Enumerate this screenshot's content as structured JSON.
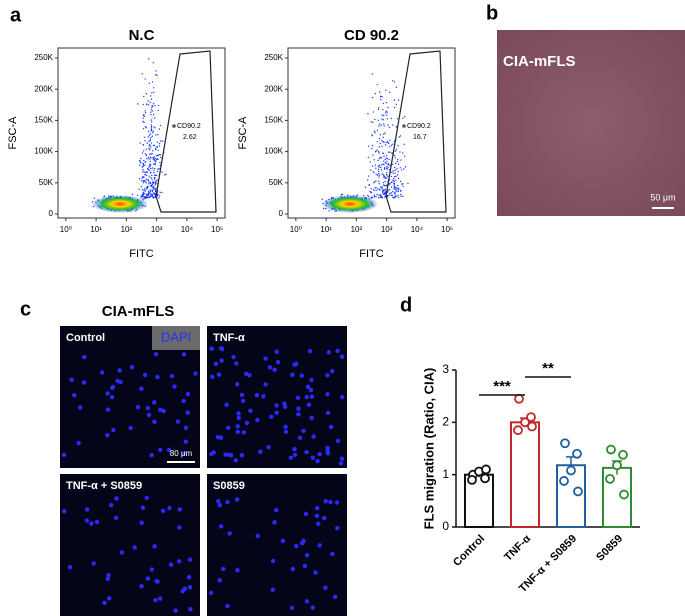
{
  "figure": {
    "panel_labels": [
      "a",
      "b",
      "c",
      "d"
    ],
    "b": {
      "title": "CIA-mFLS",
      "scale": "50 μm"
    },
    "c": {
      "title": "CIA-mFLS",
      "stain": "DAPI",
      "fields": [
        "Control",
        "TNF-α",
        "TNF-α + S0859",
        "S0859"
      ],
      "scale": "80 μm"
    }
  },
  "chart_data": [
    {
      "type": "scatter",
      "title": "N.C",
      "xlabel": "FITC",
      "ylabel": "FSC-A",
      "xscale": "log",
      "xlim": [
        0.55,
        182000
      ],
      "xticks": [
        {
          "value": 1,
          "label": "10⁰"
        },
        {
          "value": 10,
          "label": "10¹"
        },
        {
          "value": 100,
          "label": "10²"
        },
        {
          "value": 1000,
          "label": "10³"
        },
        {
          "value": 10000,
          "label": "10⁴"
        },
        {
          "value": 100000,
          "label": "10⁵"
        }
      ],
      "ylim": [
        -6400,
        266000
      ],
      "yticks": [
        0,
        {
          "value": 50000,
          "label": "50K"
        },
        {
          "value": 100000,
          "label": "100K"
        },
        {
          "value": 150000,
          "label": "150K"
        },
        {
          "value": 200000,
          "label": "200K"
        },
        {
          "value": 250000,
          "label": "250K"
        }
      ],
      "gate": {
        "name": "CD90.2",
        "value": 2.62
      },
      "color": "#1a3cff"
    },
    {
      "type": "scatter",
      "title": "CD 90.2",
      "xlabel": "FITC",
      "ylabel": "FSC-A",
      "xscale": "log",
      "xlim": [
        0.55,
        182000
      ],
      "xticks": [
        {
          "value": 1,
          "label": "10⁰"
        },
        {
          "value": 10,
          "label": "10¹"
        },
        {
          "value": 100,
          "label": "10²"
        },
        {
          "value": 1000,
          "label": "10³"
        },
        {
          "value": 10000,
          "label": "10⁴"
        },
        {
          "value": 100000,
          "label": "10⁵"
        }
      ],
      "ylim": [
        -6400,
        266000
      ],
      "yticks": [
        0,
        {
          "value": 50000,
          "label": "50K"
        },
        {
          "value": 100000,
          "label": "100K"
        },
        {
          "value": 150000,
          "label": "150K"
        },
        {
          "value": 200000,
          "label": "200K"
        },
        {
          "value": 250000,
          "label": "250K"
        }
      ],
      "gate": {
        "name": "CD90.2",
        "value": 16.7
      },
      "color": "#1a3cff"
    },
    {
      "type": "bar",
      "ylabel": "FLS migration (Ratio, CIA)",
      "categories": [
        "Control",
        "TNF-α",
        "TNF-α + S0859",
        "S0859"
      ],
      "values": [
        1.0,
        2.0,
        1.18,
        1.13
      ],
      "errors": [
        0.05,
        0.08,
        0.16,
        0.13
      ],
      "colors": [
        "#111111",
        "#c0282d",
        "#1f5fa0",
        "#2e8b2e"
      ],
      "points": [
        [
          1.0,
          0.93,
          1.06,
          0.9,
          1.1
        ],
        [
          2.45,
          2.1,
          2.0,
          1.85,
          1.92
        ],
        [
          1.6,
          1.4,
          1.08,
          0.88,
          0.68
        ],
        [
          1.48,
          1.38,
          1.18,
          0.92,
          0.62
        ]
      ],
      "ylim": [
        0,
        3
      ],
      "yticks": [
        0,
        1,
        2,
        3
      ],
      "annotations": [
        "***",
        "**"
      ]
    }
  ]
}
